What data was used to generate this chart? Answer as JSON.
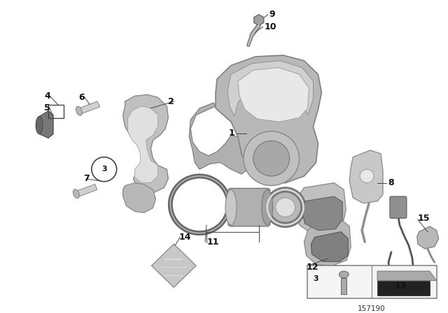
{
  "bg_color": "#ffffff",
  "fig_width": 6.4,
  "fig_height": 4.48,
  "dpi": 100,
  "ref_number": "157190",
  "label_fontsize": 9,
  "label_fontweight": "bold",
  "label_color": "#111111"
}
